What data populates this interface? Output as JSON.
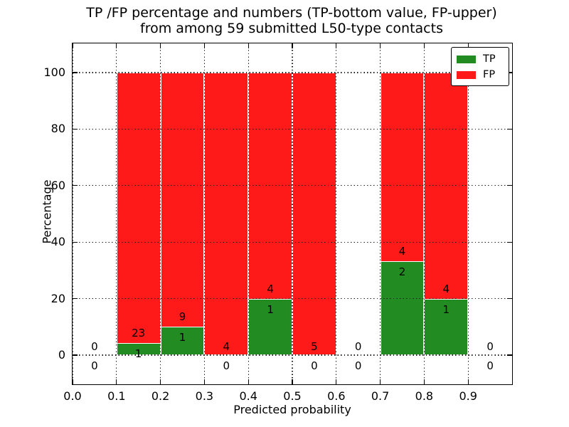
{
  "title": {
    "line1": "TP /FP percentage and numbers (TP-bottom value, FP-upper)",
    "line2": "from among 59 submitted L50-type contacts"
  },
  "axes": {
    "xlabel": "Predicted probability",
    "ylabel": "Percentage",
    "xtick_labels": [
      "0.0",
      "0.1",
      "0.2",
      "0.3",
      "0.4",
      "0.5",
      "0.6",
      "0.7",
      "0.8",
      "0.9"
    ],
    "xtick_values": [
      0.0,
      0.1,
      0.2,
      0.3,
      0.4,
      0.5,
      0.6,
      0.7,
      0.8,
      0.9
    ],
    "ytick_labels": [
      "0",
      "20",
      "40",
      "60",
      "80",
      "100"
    ],
    "ytick_values": [
      0,
      20,
      40,
      60,
      80,
      100
    ]
  },
  "legend": {
    "items": [
      {
        "label": "TP",
        "color": "#228b22",
        "swatch": "tp-legend-swatch"
      },
      {
        "label": "FP",
        "color": "#ff1a1a",
        "swatch": "fp-legend-swatch"
      }
    ]
  },
  "colors": {
    "tp": "#228b22",
    "fp": "#ff1a1a",
    "bar_edge": "#ffffff",
    "grid": "#000000",
    "spine": "#000000",
    "background": "#ffffff"
  },
  "chart_data": {
    "type": "bar",
    "stacked": true,
    "normalized_to_percent": true,
    "title": "TP /FP percentage and numbers (TP-bottom value, FP-upper) from among 59 submitted L50-type contacts",
    "xlabel": "Predicted probability",
    "ylabel": "Percentage",
    "xlim": [
      0.0,
      1.0
    ],
    "ylim": [
      -10.5,
      110.5
    ],
    "bin_width": 0.1,
    "grid": "dotted, both axes, drawn over bars",
    "legend_position": "upper right",
    "series": [
      {
        "name": "TP",
        "color": "#228b22"
      },
      {
        "name": "FP",
        "color": "#ff1a1a"
      }
    ],
    "bins": [
      {
        "x_start": 0.0,
        "x_end": 0.1,
        "tp_count": 0,
        "fp_count": 0,
        "tp_pct": 0.0,
        "fp_pct": 0.0,
        "has_bar": false
      },
      {
        "x_start": 0.1,
        "x_end": 0.2,
        "tp_count": 1,
        "fp_count": 23,
        "tp_pct": 4.17,
        "fp_pct": 95.83,
        "has_bar": true
      },
      {
        "x_start": 0.2,
        "x_end": 0.3,
        "tp_count": 1,
        "fp_count": 9,
        "tp_pct": 10.0,
        "fp_pct": 90.0,
        "has_bar": true
      },
      {
        "x_start": 0.3,
        "x_end": 0.4,
        "tp_count": 0,
        "fp_count": 4,
        "tp_pct": 0.0,
        "fp_pct": 100.0,
        "has_bar": true
      },
      {
        "x_start": 0.4,
        "x_end": 0.5,
        "tp_count": 1,
        "fp_count": 4,
        "tp_pct": 20.0,
        "fp_pct": 80.0,
        "has_bar": true
      },
      {
        "x_start": 0.5,
        "x_end": 0.6,
        "tp_count": 0,
        "fp_count": 5,
        "tp_pct": 0.0,
        "fp_pct": 100.0,
        "has_bar": true
      },
      {
        "x_start": 0.6,
        "x_end": 0.7,
        "tp_count": 0,
        "fp_count": 0,
        "tp_pct": 0.0,
        "fp_pct": 0.0,
        "has_bar": false
      },
      {
        "x_start": 0.7,
        "x_end": 0.8,
        "tp_count": 2,
        "fp_count": 4,
        "tp_pct": 33.33,
        "fp_pct": 66.67,
        "has_bar": true
      },
      {
        "x_start": 0.8,
        "x_end": 0.9,
        "tp_count": 1,
        "fp_count": 4,
        "tp_pct": 20.0,
        "fp_pct": 80.0,
        "has_bar": true
      },
      {
        "x_start": 0.9,
        "x_end": 1.0,
        "tp_count": 0,
        "fp_count": 0,
        "tp_pct": 0.0,
        "fp_pct": 0.0,
        "has_bar": false
      }
    ]
  }
}
